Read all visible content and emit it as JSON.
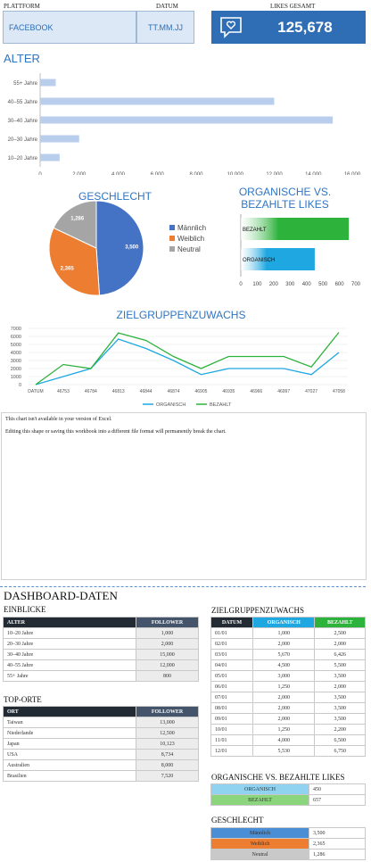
{
  "header": {
    "plattform_label": "PLATTFORM",
    "datum_label": "DATUM",
    "likes_label": "LIKES GESAMT",
    "plattform_value": "FACEBOOK",
    "datum_value": "TT.MM.JJ",
    "likes_value": "125,678"
  },
  "alter_chart": {
    "title": "ALTER",
    "chart_data": {
      "type": "bar",
      "orientation": "horizontal",
      "categories": [
        "10–20 Jahre",
        "20–30 Jahre",
        "30–40 Jahre",
        "40–55 Jahre",
        "55+ Jahre"
      ],
      "values": [
        1000,
        2000,
        15000,
        12000,
        800
      ],
      "xlim": [
        0,
        16000
      ],
      "ticks": [
        "0",
        "2,000",
        "4,000",
        "6,000",
        "8,000",
        "10,000",
        "12,000",
        "14,000",
        "16,000"
      ],
      "color": "#b9cdec"
    }
  },
  "geschlecht_chart": {
    "title": "GESCHLECHT",
    "chart_data": {
      "type": "pie",
      "labels": [
        "Männlich",
        "Weiblich",
        "Neutral"
      ],
      "values": [
        3500,
        2365,
        1286
      ],
      "value_labels": [
        "3,500",
        "2,365",
        "1,286"
      ],
      "colors": [
        "#4472c4",
        "#ed7d31",
        "#a5a5a5"
      ],
      "legend": "right"
    }
  },
  "likes_chart": {
    "title_line1": "ORGANISCHE VS.",
    "title_line2": "BEZAHLTE LIKES",
    "chart_data": {
      "type": "bar",
      "orientation": "horizontal",
      "categories": [
        "BEZAHLT",
        "ORGANISCH"
      ],
      "values": [
        657,
        450
      ],
      "xlim": [
        0,
        700
      ],
      "ticks": [
        "0",
        "100",
        "200",
        "300",
        "400",
        "500",
        "600",
        "700"
      ],
      "colors": [
        "#2db23b",
        "#1ea7e1"
      ]
    }
  },
  "growth_chart": {
    "title": "ZIELGRUPPENZUWACHS",
    "chart_data": {
      "type": "line",
      "x": [
        "DATUM",
        "46753",
        "46784",
        "46813",
        "46844",
        "46874",
        "46905",
        "46935",
        "46966",
        "46997",
        "47027",
        "47058"
      ],
      "ylim": [
        0,
        7000
      ],
      "yticks": [
        "0",
        "1000",
        "2000",
        "3000",
        "4000",
        "5000",
        "6000",
        "7000"
      ],
      "series": [
        {
          "name": "ORGANISCH",
          "values": [
            0,
            1000,
            2000,
            5670,
            4500,
            3000,
            1250,
            2000,
            2000,
            2000,
            1250,
            4000
          ],
          "color": "#1ea7e1"
        },
        {
          "name": "BEZAHLT",
          "values": [
            0,
            2500,
            2000,
            6426,
            5500,
            3500,
            2000,
            3500,
            3500,
            3500,
            2200,
            6500
          ],
          "color": "#2db23b"
        }
      ],
      "legend": "bottom"
    }
  },
  "placeholder": {
    "line1": "This chart isn't available in your version of Excel.",
    "line2": "Editing this shape or saving this workbook into a different file format will permanently break the chart."
  },
  "dashboard": {
    "title": "DASHBOARD-DATEN",
    "einblicke": {
      "title": "EINBLICKE",
      "headers": [
        "ALTER",
        "FOLLOWER"
      ],
      "rows": [
        [
          "10–20 Jahre",
          "1,000"
        ],
        [
          "20–30 Jahre",
          "2,000"
        ],
        [
          "30–40 Jahre",
          "15,000"
        ],
        [
          "40–55 Jahre",
          "12,000"
        ],
        [
          "55+ Jahre",
          "800"
        ]
      ]
    },
    "topOrte": {
      "title": "TOP-ORTE",
      "headers": [
        "ORT",
        "FOLLOWER"
      ],
      "rows": [
        [
          "Taiwan",
          "13,000"
        ],
        [
          "Niederlande",
          "12,500"
        ],
        [
          "Japan",
          "10,123"
        ],
        [
          "USA",
          "8,734"
        ],
        [
          "Australien",
          "8,000"
        ],
        [
          "Brasilien",
          "7,520"
        ]
      ]
    },
    "zuwachs": {
      "title": "ZIELGRUPPENZUWACHS",
      "headers": [
        "DATUM",
        "ORGANISCH",
        "BEZAHLT"
      ],
      "rows": [
        [
          "01/01",
          "1,000",
          "2,500"
        ],
        [
          "02/01",
          "2,000",
          "2,000"
        ],
        [
          "03/01",
          "5,670",
          "6,426"
        ],
        [
          "04/01",
          "4,500",
          "5,500"
        ],
        [
          "05/01",
          "3,000",
          "3,500"
        ],
        [
          "06/01",
          "1,250",
          "2,000"
        ],
        [
          "07/01",
          "2,000",
          "3,500"
        ],
        [
          "08/01",
          "2,000",
          "3,500"
        ],
        [
          "09/01",
          "2,000",
          "3,500"
        ],
        [
          "10/01",
          "1,250",
          "2,200"
        ],
        [
          "11/01",
          "4,000",
          "6,500"
        ],
        [
          "12/01",
          "5,530",
          "6,750"
        ]
      ]
    },
    "likes": {
      "title": "ORGANISCHE VS. BEZAHLTE LIKES",
      "rows": [
        [
          "ORGANISCH",
          "450"
        ],
        [
          "BEZAHLT",
          "657"
        ]
      ]
    },
    "geschlecht": {
      "title": "GESCHLECHT",
      "rows": [
        [
          "Männlich",
          "3,500"
        ],
        [
          "Weiblich",
          "2,365"
        ],
        [
          "Neutral",
          "1,286"
        ]
      ]
    }
  }
}
